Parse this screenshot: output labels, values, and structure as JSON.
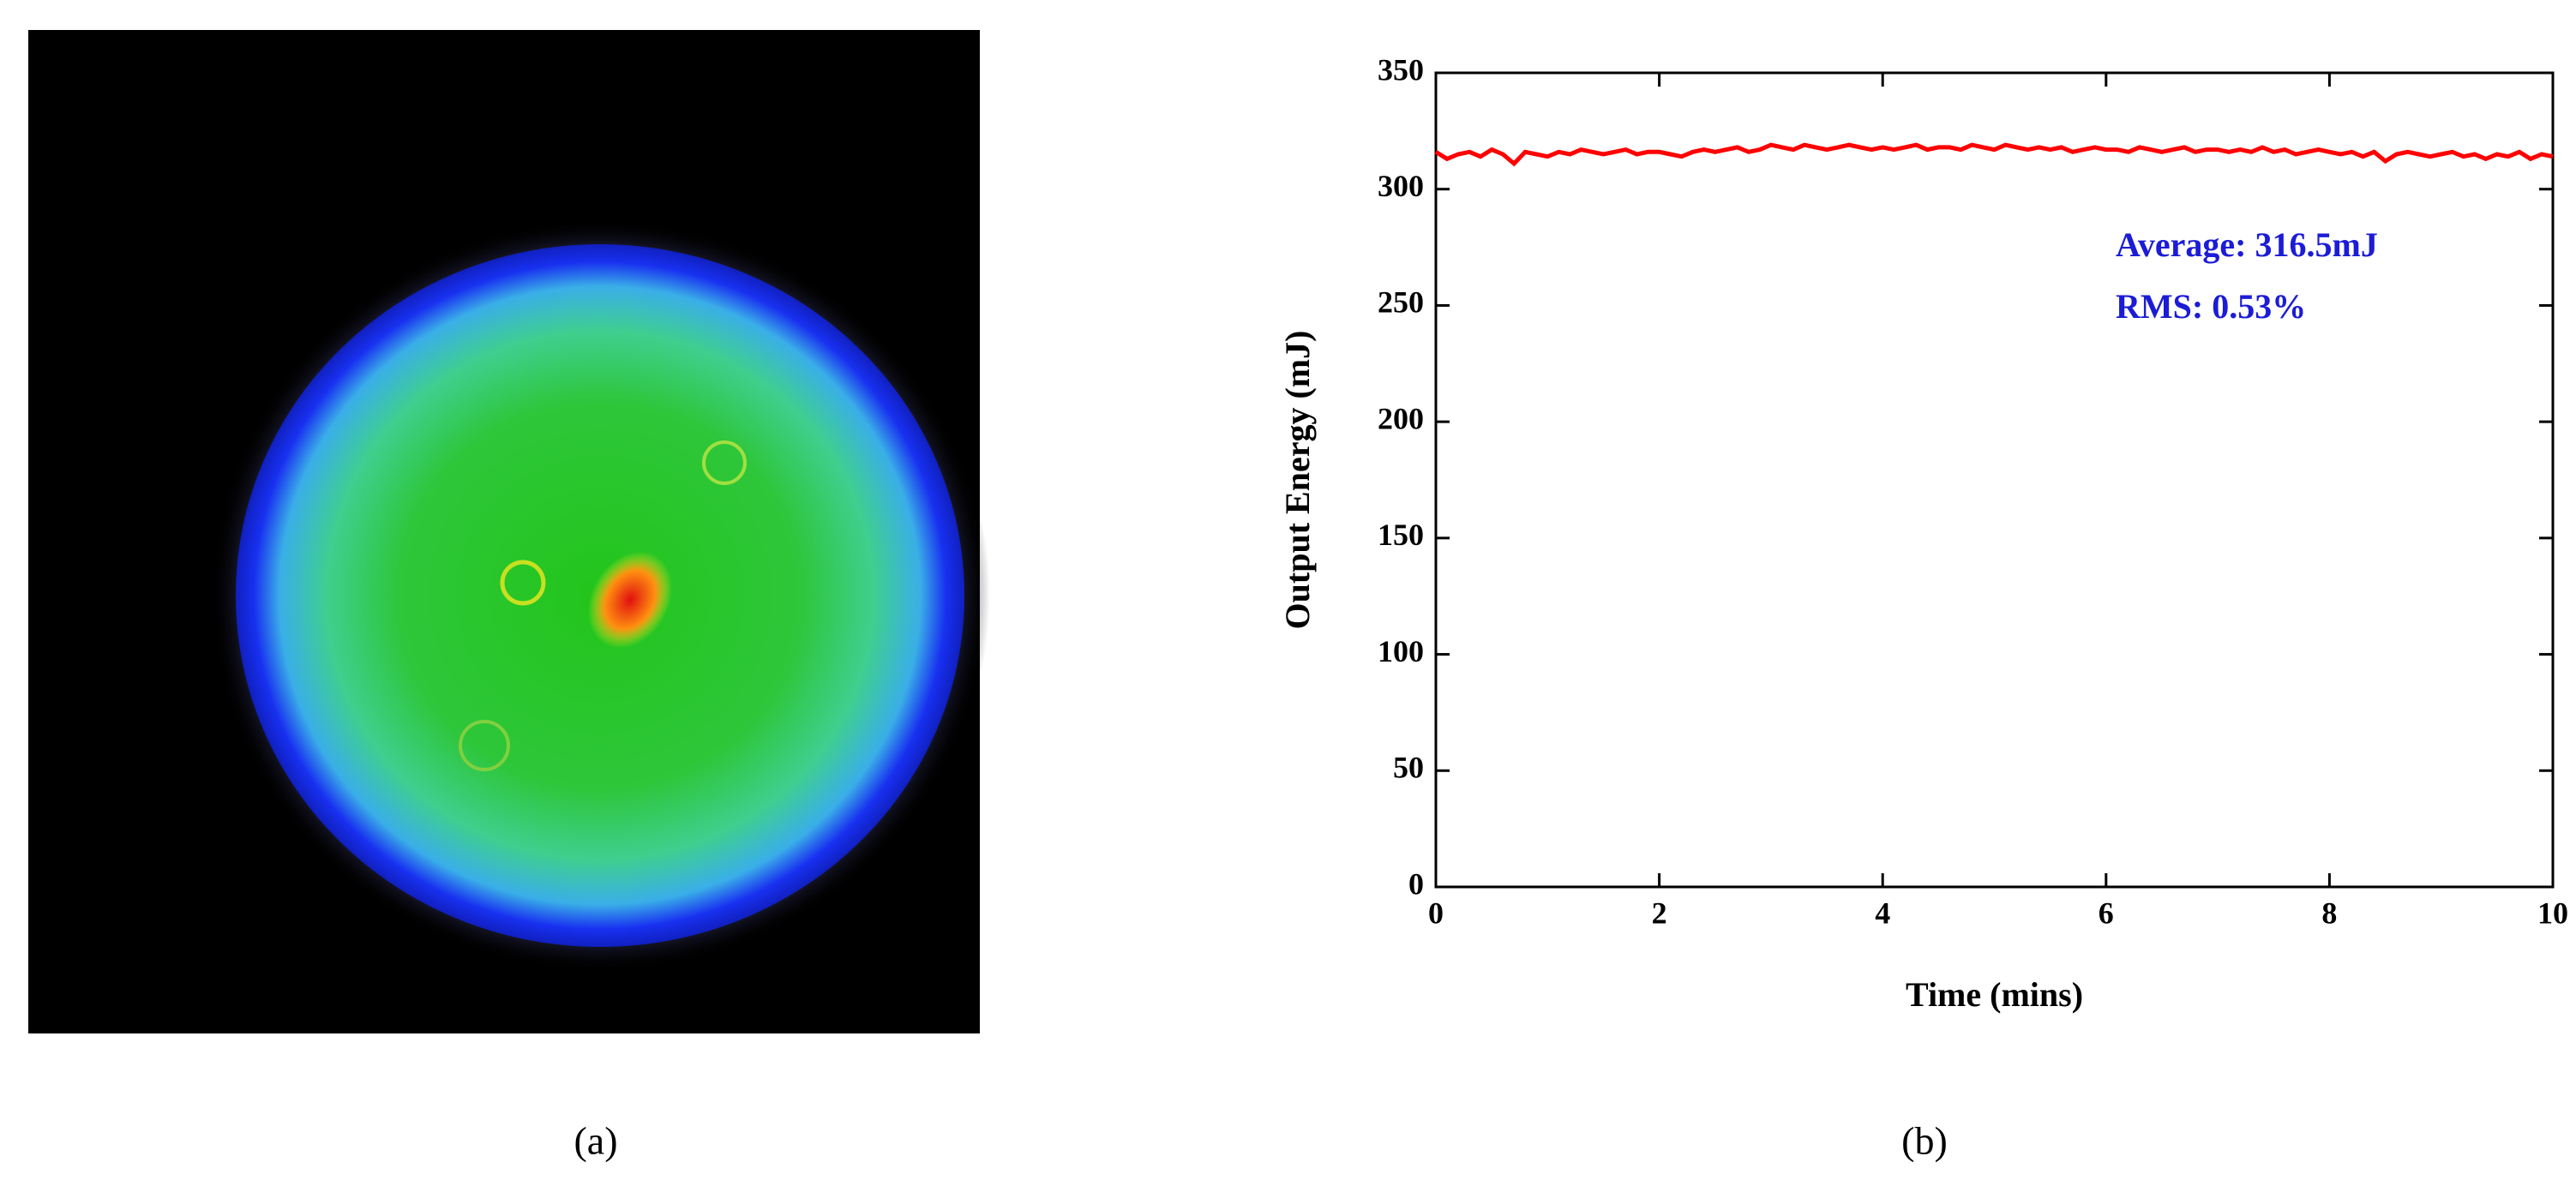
{
  "panel_labels": [
    "(a)",
    "(b)"
  ],
  "chart_data": {
    "type": "line",
    "xlabel": "Time (mins)",
    "ylabel": "Output Energy (mJ)",
    "annotations": [
      "Average: 316.5mJ",
      "RMS: 0.53%"
    ],
    "annotation_color": "#1c1cd6",
    "x": [
      0,
      0.1,
      0.2,
      0.3,
      0.4,
      0.5,
      0.6,
      0.7,
      0.8,
      0.9,
      1,
      1.1,
      1.2,
      1.3,
      1.4,
      1.5,
      1.6,
      1.7,
      1.8,
      1.9,
      2,
      2.1,
      2.2,
      2.3,
      2.4,
      2.5,
      2.6,
      2.7,
      2.8,
      2.9,
      3,
      3.1,
      3.2,
      3.3,
      3.4,
      3.5,
      3.6,
      3.7,
      3.8,
      3.9,
      4,
      4.1,
      4.2,
      4.3,
      4.4,
      4.5,
      4.6,
      4.7,
      4.8,
      4.9,
      5,
      5.1,
      5.2,
      5.3,
      5.4,
      5.5,
      5.6,
      5.7,
      5.8,
      5.9,
      6,
      6.1,
      6.2,
      6.3,
      6.4,
      6.5,
      6.6,
      6.7,
      6.8,
      6.9,
      7,
      7.1,
      7.2,
      7.3,
      7.4,
      7.5,
      7.6,
      7.7,
      7.8,
      7.9,
      8,
      8.1,
      8.2,
      8.3,
      8.4,
      8.5,
      8.6,
      8.7,
      8.8,
      8.9,
      9,
      9.1,
      9.2,
      9.3,
      9.4,
      9.5,
      9.6,
      9.7,
      9.8,
      9.9,
      10
    ],
    "series": [
      {
        "color": "#ff0000",
        "values": [
          316,
          313,
          315,
          316,
          314,
          317,
          315,
          311,
          316,
          315,
          314,
          316,
          315,
          317,
          316,
          315,
          316,
          317,
          315,
          316,
          316,
          315,
          314,
          316,
          317,
          316,
          317,
          318,
          316,
          317,
          319,
          318,
          317,
          319,
          318,
          317,
          318,
          319,
          318,
          317,
          318,
          317,
          318,
          319,
          317,
          318,
          318,
          317,
          319,
          318,
          317,
          319,
          318,
          317,
          318,
          317,
          318,
          316,
          317,
          318,
          317,
          317,
          316,
          318,
          317,
          316,
          317,
          318,
          316,
          317,
          317,
          316,
          317,
          316,
          318,
          316,
          317,
          315,
          316,
          317,
          316,
          315,
          316,
          314,
          316,
          312,
          315,
          316,
          315,
          314,
          315,
          316,
          314,
          315,
          313,
          315,
          314,
          316,
          313,
          315,
          314
        ]
      }
    ],
    "xlim": [
      0,
      10
    ],
    "xticks": [
      0,
      2,
      4,
      6,
      8,
      10
    ],
    "ylim": [
      0,
      350
    ],
    "yticks": [
      0,
      50,
      100,
      150,
      200,
      250,
      300,
      350
    ]
  }
}
